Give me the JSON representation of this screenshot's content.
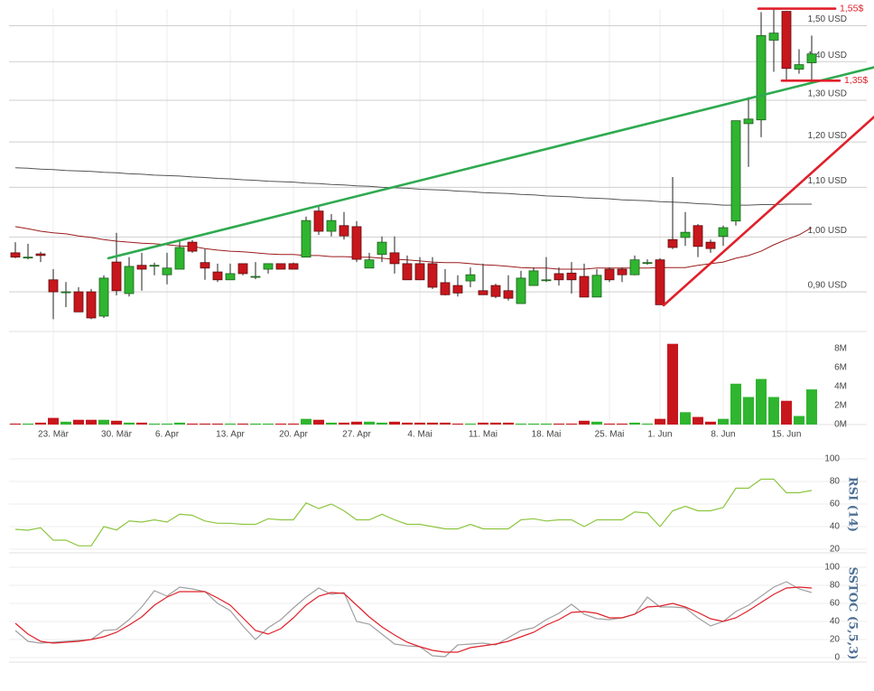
{
  "chart_data": [
    {
      "type": "candlestick",
      "categories": [
        null,
        null,
        null,
        "23. Mär",
        null,
        null,
        null,
        null,
        "30. Mär",
        null,
        null,
        null,
        "6. Apr",
        null,
        null,
        null,
        null,
        "13. Apr",
        null,
        null,
        null,
        null,
        "20. Apr",
        null,
        null,
        null,
        null,
        "27. Apr",
        null,
        null,
        null,
        null,
        "4. Mai",
        null,
        null,
        null,
        null,
        "11. Mai",
        null,
        null,
        null,
        null,
        "18. Mai",
        null,
        null,
        null,
        null,
        "25. Mai",
        null,
        null,
        null,
        "1. Jun",
        null,
        null,
        null,
        null,
        "8. Jun",
        null,
        null,
        null,
        null,
        "15. Jun",
        null,
        null
      ],
      "open": [
        0.97,
        0.962,
        0.968,
        0.921,
        0.9,
        0.9,
        0.9,
        0.859,
        0.953,
        0.897,
        0.947,
        0.947,
        0.93,
        0.94,
        0.99,
        0.952,
        0.935,
        0.921,
        0.95,
        0.927,
        0.94,
        0.95,
        0.95,
        0.962,
        1.051,
        1.011,
        1.022,
        1.02,
        0.942,
        0.967,
        0.97,
        0.95,
        0.95,
        0.95,
        0.916,
        0.911,
        0.919,
        0.902,
        0.911,
        0.902,
        0.88,
        0.911,
        0.921,
        0.932,
        0.933,
        0.927,
        0.891,
        0.94,
        0.94,
        0.93,
        0.952,
        0.957,
        0.995,
        0.999,
        1.022,
        0.99,
        1.001,
        1.031,
        1.243,
        1.252,
        1.459,
        1.542,
        1.38,
        1.397
      ],
      "high": [
        0.99,
        0.987,
        0.972,
        0.94,
        0.917,
        0.908,
        0.905,
        0.929,
        1.008,
        0.962,
        0.97,
        0.952,
        0.97,
        0.995,
        0.994,
        0.977,
        0.95,
        0.95,
        0.95,
        0.953,
        0.95,
        0.95,
        0.952,
        1.04,
        1.063,
        1.045,
        1.049,
        1.031,
        0.97,
        1.001,
        1.001,
        0.965,
        0.962,
        0.962,
        0.94,
        0.929,
        0.943,
        0.95,
        0.914,
        0.929,
        0.937,
        0.943,
        0.962,
        0.943,
        0.953,
        0.95,
        0.94,
        0.943,
        0.943,
        0.965,
        0.958,
        0.96,
        1.122,
        1.049,
        1.025,
        0.995,
        1.022,
        1.25,
        1.308,
        1.54,
        1.55,
        1.542,
        1.434,
        1.472
      ],
      "low": [
        0.96,
        0.958,
        0.953,
        0.854,
        0.874,
        0.866,
        0.854,
        0.856,
        0.894,
        0.892,
        0.902,
        0.929,
        0.913,
        0.94,
        0.97,
        0.921,
        0.917,
        0.921,
        0.929,
        0.922,
        0.932,
        0.94,
        0.94,
        0.962,
        1.004,
        1.001,
        0.995,
        0.953,
        0.942,
        0.953,
        0.932,
        0.921,
        0.921,
        0.905,
        0.894,
        0.892,
        0.908,
        0.895,
        0.889,
        0.885,
        0.88,
        0.911,
        0.917,
        0.911,
        0.897,
        0.891,
        0.891,
        0.917,
        0.917,
        0.929,
        0.948,
        0.878,
        0.977,
        0.983,
        0.962,
        0.97,
        0.983,
        1.022,
        1.144,
        1.211,
        1.373,
        1.349,
        1.368,
        1.349
      ],
      "close": [
        0.962,
        0.962,
        0.965,
        0.9,
        0.9,
        0.866,
        0.856,
        0.924,
        0.902,
        0.945,
        0.94,
        0.947,
        0.942,
        0.98,
        0.973,
        0.942,
        0.921,
        0.932,
        0.932,
        0.927,
        0.95,
        0.94,
        0.94,
        1.032,
        1.011,
        1.032,
        1.002,
        0.958,
        0.957,
        0.99,
        0.95,
        0.921,
        0.921,
        0.908,
        0.895,
        0.898,
        0.93,
        0.895,
        0.892,
        0.889,
        0.924,
        0.937,
        0.921,
        0.921,
        0.921,
        0.891,
        0.929,
        0.921,
        0.93,
        0.957,
        0.952,
        0.878,
        0.98,
        1.009,
        0.982,
        0.978,
        1.018,
        1.25,
        1.254,
        1.472,
        1.479,
        1.382,
        1.392,
        1.421
      ],
      "up_color": "#2fb52f",
      "down_color": "#c8161d",
      "log_scale": true,
      "grid": true,
      "ylim": [
        0.834,
        1.557
      ],
      "yticks": [
        {
          "value": 0.9,
          "label": "0,90 USD"
        },
        {
          "value": 1.0,
          "label": "1,00 USD"
        },
        {
          "value": 1.1,
          "label": "1,10 USD"
        },
        {
          "value": 1.2,
          "label": "1,20 USD"
        },
        {
          "value": 1.3,
          "label": "1,30 USD"
        },
        {
          "value": 1.4,
          "label": "1,40 USD"
        },
        {
          "value": 1.5,
          "label": "1,50 USD"
        }
      ],
      "overlays": [
        {
          "color": "#555555",
          "values": [
            1.142,
            1.141,
            1.139,
            1.138,
            1.136,
            1.135,
            1.134,
            1.132,
            1.131,
            1.129,
            1.128,
            1.126,
            1.125,
            1.124,
            1.122,
            1.121,
            1.119,
            1.118,
            1.116,
            1.115,
            1.113,
            1.112,
            1.111,
            1.109,
            1.108,
            1.106,
            1.105,
            1.103,
            1.102,
            1.1,
            1.099,
            1.098,
            1.096,
            1.095,
            1.094,
            1.092,
            1.091,
            1.089,
            1.088,
            1.087,
            1.085,
            1.084,
            1.082,
            1.081,
            1.08,
            1.078,
            1.077,
            1.076,
            1.074,
            1.073,
            1.072,
            1.07,
            1.069,
            1.068,
            1.066,
            1.065,
            1.063,
            1.063,
            1.063,
            1.064,
            1.064,
            1.065,
            1.065,
            1.065
          ]
        },
        {
          "color": "#9b1b1b",
          "values": [
            1.02,
            1.016,
            1.011,
            1.008,
            1.006,
            1.002,
            0.999,
            0.995,
            0.992,
            0.99,
            0.988,
            0.987,
            0.985,
            0.983,
            0.982,
            0.978,
            0.975,
            0.973,
            0.972,
            0.97,
            0.968,
            0.967,
            0.967,
            0.965,
            0.965,
            0.963,
            0.963,
            0.962,
            0.962,
            0.96,
            0.958,
            0.957,
            0.955,
            0.953,
            0.952,
            0.952,
            0.95,
            0.948,
            0.947,
            0.945,
            0.943,
            0.942,
            0.942,
            0.94,
            0.94,
            0.94,
            0.942,
            0.942,
            0.942,
            0.942,
            0.942,
            0.943,
            0.943,
            0.943,
            0.947,
            0.95,
            0.953,
            0.96,
            0.965,
            0.973,
            0.985,
            0.995,
            1.004,
            1.018
          ]
        }
      ],
      "lines": [
        {
          "color": "#2eaa4f",
          "from": [
            7.36,
            0.96
          ],
          "to": [
            67.93,
            1.385
          ]
        },
        {
          "color": "#e0202a",
          "from": [
            51.29,
            0.877
          ],
          "to": [
            67.93,
            1.259
          ]
        },
        {
          "color": "#e0202a",
          "from": [
            58.79,
            1.55
          ],
          "to": [
            64.86,
            1.55
          ],
          "label": "1,55$"
        },
        {
          "color": "#e0202a",
          "from": [
            60.64,
            1.35
          ],
          "to": [
            65.21,
            1.35
          ],
          "label": "1,35$"
        }
      ]
    },
    {
      "type": "bar",
      "values": [
        0.1,
        0.1,
        0.2,
        0.7,
        0.3,
        0.5,
        0.5,
        0.5,
        0.4,
        0.2,
        0.2,
        0.1,
        0.1,
        0.2,
        0.1,
        0.1,
        0.1,
        0.1,
        0.1,
        0.1,
        0.1,
        0.1,
        0.1,
        0.6,
        0.5,
        0.2,
        0.2,
        0.3,
        0.3,
        0.2,
        0.3,
        0.2,
        0.2,
        0.2,
        0.2,
        0.1,
        0.1,
        0.2,
        0.2,
        0.2,
        0.1,
        0.1,
        0.1,
        0.1,
        0.1,
        0.4,
        0.3,
        0.1,
        0.1,
        0.2,
        0.1,
        0.6,
        8.5,
        1.3,
        0.8,
        0.3,
        0.6,
        4.3,
        2.9,
        4.8,
        2.9,
        2.5,
        0.9,
        3.7
      ],
      "ylim": [
        0,
        9.8
      ],
      "yticks": [
        {
          "value": 0,
          "label": "0M"
        },
        {
          "value": 2,
          "label": "2M"
        },
        {
          "value": 4,
          "label": "4M"
        },
        {
          "value": 6,
          "label": "6M"
        },
        {
          "value": 8,
          "label": "8M"
        }
      ]
    },
    {
      "type": "line",
      "title": "RSI (14)",
      "grid": true,
      "series": [
        {
          "color": "#8dc63f",
          "values": [
            37.6,
            36.8,
            39,
            28,
            28,
            23,
            23,
            40,
            37,
            45,
            44,
            46,
            44,
            51,
            50,
            45,
            43,
            43,
            42,
            42,
            47,
            46,
            46,
            61,
            56,
            60,
            54,
            46,
            46,
            51,
            46,
            42,
            42,
            40,
            38,
            38,
            42,
            38,
            38,
            38,
            46,
            47,
            45,
            46,
            46,
            40,
            46,
            46,
            46,
            53,
            52,
            40,
            54,
            58,
            54,
            54,
            57,
            74,
            74,
            82,
            82,
            70,
            70,
            72
          ]
        }
      ],
      "ylim": [
        16.8,
        102.4
      ],
      "yticks": [
        20,
        40,
        60,
        80,
        100
      ]
    },
    {
      "type": "line",
      "title": "SSTOC (5,5,3)",
      "grid": true,
      "series": [
        {
          "color": "#a0a0a0",
          "values": [
            30,
            18,
            16,
            17,
            18,
            19,
            20,
            30,
            31,
            42,
            56,
            74,
            68,
            78,
            76,
            73,
            60,
            52,
            35,
            20,
            33,
            42,
            55,
            67,
            77,
            70,
            72,
            40,
            37,
            26,
            15,
            13,
            12,
            2,
            1,
            14,
            15,
            16,
            14,
            22,
            30,
            33,
            42,
            49,
            59,
            48,
            43,
            42,
            44,
            48,
            67,
            56,
            56,
            55,
            44,
            35,
            40,
            51,
            58,
            68,
            78,
            84,
            76,
            72
          ]
        },
        {
          "color": "#e0202a",
          "values": [
            38,
            26,
            18,
            16,
            17,
            18,
            20,
            23,
            28,
            36,
            45,
            58,
            67,
            73,
            73,
            73,
            66,
            58,
            44,
            30,
            26,
            32,
            44,
            58,
            68,
            72,
            71,
            58,
            45,
            34,
            25,
            17,
            12,
            8,
            6,
            6,
            11,
            13,
            15,
            18,
            23,
            28,
            36,
            42,
            50,
            51,
            49,
            44,
            44,
            48,
            56,
            57,
            60,
            56,
            50,
            43,
            40,
            44,
            52,
            61,
            70,
            77,
            78,
            77
          ]
        }
      ],
      "ylim": [
        -5,
        103
      ],
      "yticks": [
        0,
        20,
        40,
        60,
        80,
        100
      ]
    }
  ]
}
